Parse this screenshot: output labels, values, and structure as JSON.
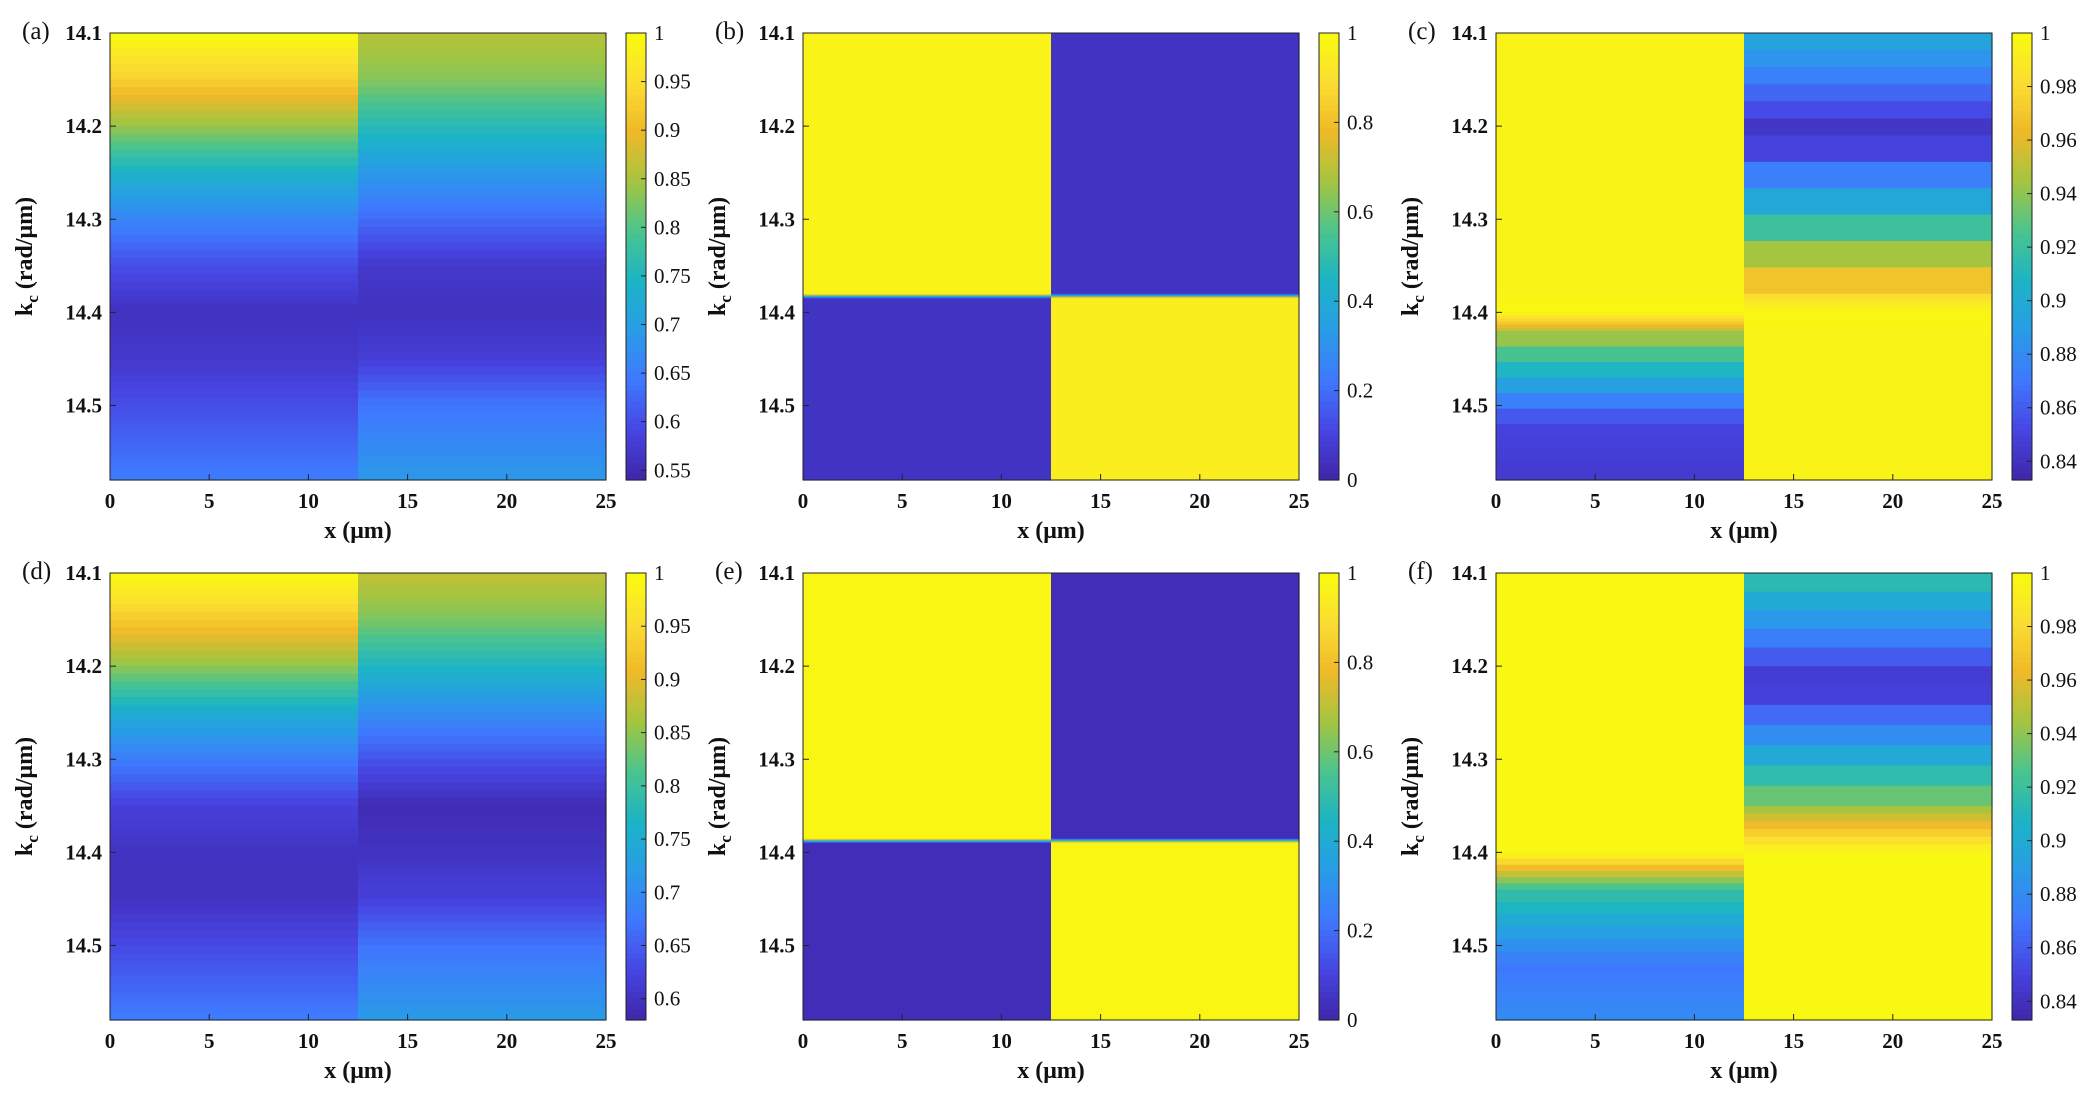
{
  "colormap": [
    "#3e26a8",
    "#4745e3",
    "#3f78fe",
    "#299ce7",
    "#1cb4c5",
    "#4ac48e",
    "#a4c540",
    "#efb928",
    "#fbde32",
    "#f9fb0e"
  ],
  "chart_data": [
    {
      "panel": "(a)",
      "type": "heatmap",
      "xlabel": "x (μm)",
      "ylabel": "k_c (rad/μm)",
      "xlim": [
        0,
        25
      ],
      "ylim": [
        14.1,
        14.58
      ],
      "xticks": [
        "0",
        "5",
        "10",
        "15",
        "20",
        "25"
      ],
      "yticks": [
        "14.1",
        "14.2",
        "14.3",
        "14.4",
        "14.5"
      ],
      "clim": [
        0.54,
        1
      ],
      "cbticks": [
        "0.55",
        "0.6",
        "0.65",
        "0.7",
        "0.75",
        "0.8",
        "0.85",
        "0.9",
        "0.95",
        "1"
      ],
      "cbtick_values": [
        0.55,
        0.6,
        0.65,
        0.7,
        0.75,
        0.8,
        0.85,
        0.9,
        0.95,
        1
      ],
      "x": [
        0,
        12.5,
        25
      ],
      "rows": [
        {
          "k": 14.1,
          "values": [
            1.0,
            0.86
          ]
        },
        {
          "k": 14.15,
          "values": [
            0.93,
            0.83
          ]
        },
        {
          "k": 14.2,
          "values": [
            0.84,
            0.76
          ]
        },
        {
          "k": 14.25,
          "values": [
            0.74,
            0.69
          ]
        },
        {
          "k": 14.3,
          "values": [
            0.66,
            0.63
          ]
        },
        {
          "k": 14.35,
          "values": [
            0.6,
            0.57
          ]
        },
        {
          "k": 14.4,
          "values": [
            0.56,
            0.56
          ]
        },
        {
          "k": 14.45,
          "values": [
            0.57,
            0.58
          ]
        },
        {
          "k": 14.5,
          "values": [
            0.6,
            0.64
          ]
        },
        {
          "k": 14.55,
          "values": [
            0.63,
            0.67
          ]
        },
        {
          "k": 14.58,
          "values": [
            0.65,
            0.69
          ]
        }
      ]
    },
    {
      "panel": "(b)",
      "type": "heatmap",
      "xlabel": "x (μm)",
      "ylabel": "k_c (rad/μm)",
      "xlim": [
        0,
        25
      ],
      "ylim": [
        14.1,
        14.58
      ],
      "xticks": [
        "0",
        "5",
        "10",
        "15",
        "20",
        "25"
      ],
      "yticks": [
        "14.1",
        "14.2",
        "14.3",
        "14.4",
        "14.5"
      ],
      "clim": [
        0,
        1
      ],
      "cbticks": [
        "0",
        "0.2",
        "0.4",
        "0.6",
        "0.8",
        "1"
      ],
      "cbtick_values": [
        0,
        0.2,
        0.4,
        0.6,
        0.8,
        1
      ],
      "x": [
        0,
        12.5,
        25
      ],
      "rows": [
        {
          "k": 14.1,
          "values": [
            0.97,
            0.05
          ]
        },
        {
          "k": 14.38,
          "values": [
            0.97,
            0.05
          ]
        },
        {
          "k": 14.385,
          "values": [
            0.05,
            0.95
          ]
        },
        {
          "k": 14.58,
          "values": [
            0.05,
            0.95
          ]
        }
      ]
    },
    {
      "panel": "(c)",
      "type": "heatmap",
      "xlabel": "x  (μm)",
      "ylabel": "k_c (rad/μm)",
      "xlim": [
        0,
        25
      ],
      "ylim": [
        14.1,
        14.58
      ],
      "xticks": [
        "0",
        "5",
        "10",
        "15",
        "20",
        "25"
      ],
      "yticks": [
        "14.1",
        "14.2",
        "14.3",
        "14.4",
        "14.5"
      ],
      "clim": [
        0.833,
        1
      ],
      "cbticks": [
        "0.84",
        "0.86",
        "0.88",
        "0.9",
        "0.92",
        "0.94",
        "0.96",
        "0.98",
        "1"
      ],
      "cbtick_values": [
        0.84,
        0.86,
        0.88,
        0.9,
        0.92,
        0.94,
        0.96,
        0.98,
        1
      ],
      "x": [
        0,
        12.5,
        25
      ],
      "rows": [
        {
          "k": 14.1,
          "values": [
            0.995,
            0.9
          ]
        },
        {
          "k": 14.21,
          "values": [
            0.995,
            0.838
          ]
        },
        {
          "k": 14.38,
          "values": [
            0.995,
            0.98
          ]
        },
        {
          "k": 14.4,
          "values": [
            0.998,
            0.998
          ]
        },
        {
          "k": 14.42,
          "values": [
            0.95,
            0.995
          ]
        },
        {
          "k": 14.52,
          "values": [
            0.85,
            0.995
          ]
        },
        {
          "k": 14.58,
          "values": [
            0.845,
            0.995
          ]
        }
      ]
    },
    {
      "panel": "(d)",
      "type": "heatmap",
      "xlabel": "x (μm)",
      "ylabel": "k_c (rad/μm)",
      "xlim": [
        0,
        25
      ],
      "ylim": [
        14.1,
        14.58
      ],
      "xticks": [
        "0",
        "5",
        "10",
        "15",
        "20",
        "25"
      ],
      "yticks": [
        "14.1",
        "14.2",
        "14.3",
        "14.4",
        "14.5"
      ],
      "clim": [
        0.58,
        1
      ],
      "cbticks": [
        "0.6",
        "0.65",
        "0.7",
        "0.75",
        "0.8",
        "0.85",
        "0.9",
        "0.95",
        "1"
      ],
      "cbtick_values": [
        0.6,
        0.65,
        0.7,
        0.75,
        0.8,
        0.85,
        0.9,
        0.95,
        1
      ],
      "x": [
        0,
        12.5,
        25
      ],
      "rows": [
        {
          "k": 14.1,
          "values": [
            1.0,
            0.88
          ]
        },
        {
          "k": 14.15,
          "values": [
            0.93,
            0.84
          ]
        },
        {
          "k": 14.2,
          "values": [
            0.85,
            0.77
          ]
        },
        {
          "k": 14.25,
          "values": [
            0.75,
            0.7
          ]
        },
        {
          "k": 14.3,
          "values": [
            0.68,
            0.64
          ]
        },
        {
          "k": 14.35,
          "values": [
            0.62,
            0.59
          ]
        },
        {
          "k": 14.4,
          "values": [
            0.6,
            0.6
          ]
        },
        {
          "k": 14.45,
          "values": [
            0.6,
            0.62
          ]
        },
        {
          "k": 14.5,
          "values": [
            0.63,
            0.67
          ]
        },
        {
          "k": 14.55,
          "values": [
            0.66,
            0.7
          ]
        },
        {
          "k": 14.58,
          "values": [
            0.68,
            0.72
          ]
        }
      ]
    },
    {
      "panel": "(e)",
      "type": "heatmap",
      "xlabel": "x (μm)",
      "ylabel": "k_c (rad/μm)",
      "xlim": [
        0,
        25
      ],
      "ylim": [
        14.1,
        14.58
      ],
      "xticks": [
        "0",
        "5",
        "10",
        "15",
        "20",
        "25"
      ],
      "yticks": [
        "14.1",
        "14.2",
        "14.3",
        "14.4",
        "14.5"
      ],
      "clim": [
        0,
        1
      ],
      "cbticks": [
        "0",
        "0.2",
        "0.4",
        "0.6",
        "0.8",
        "1"
      ],
      "cbtick_values": [
        0,
        0.2,
        0.4,
        0.6,
        0.8,
        1
      ],
      "x": [
        0,
        12.5,
        25
      ],
      "rows": [
        {
          "k": 14.1,
          "values": [
            0.98,
            0.03
          ]
        },
        {
          "k": 14.385,
          "values": [
            0.98,
            0.03
          ]
        },
        {
          "k": 14.39,
          "values": [
            0.03,
            0.98
          ]
        },
        {
          "k": 14.58,
          "values": [
            0.03,
            0.98
          ]
        }
      ]
    },
    {
      "panel": "(f)",
      "type": "heatmap",
      "xlabel": "x (μm)",
      "ylabel": "k_c (rad/μm)",
      "xlim": [
        0,
        25
      ],
      "ylim": [
        14.1,
        14.58
      ],
      "xticks": [
        "0",
        "5",
        "10",
        "15",
        "20",
        "25"
      ],
      "yticks": [
        "14.1",
        "14.2",
        "14.3",
        "14.4",
        "14.5"
      ],
      "clim": [
        0.833,
        1
      ],
      "cbticks": [
        "0.84",
        "0.86",
        "0.88",
        "0.9",
        "0.92",
        "0.94",
        "0.96",
        "0.98",
        "1"
      ],
      "cbtick_values": [
        0.84,
        0.86,
        0.88,
        0.9,
        0.92,
        0.94,
        0.96,
        0.98,
        1
      ],
      "x": [
        0,
        12.5,
        25
      ],
      "rows": [
        {
          "k": 14.1,
          "values": [
            0.998,
            0.92
          ]
        },
        {
          "k": 14.22,
          "values": [
            0.998,
            0.84
          ]
        },
        {
          "k": 14.35,
          "values": [
            0.998,
            0.94
          ]
        },
        {
          "k": 14.4,
          "values": [
            0.998,
            0.998
          ]
        },
        {
          "k": 14.44,
          "values": [
            0.92,
            0.998
          ]
        },
        {
          "k": 14.52,
          "values": [
            0.87,
            0.998
          ]
        },
        {
          "k": 14.58,
          "values": [
            0.88,
            0.998
          ]
        }
      ]
    }
  ]
}
